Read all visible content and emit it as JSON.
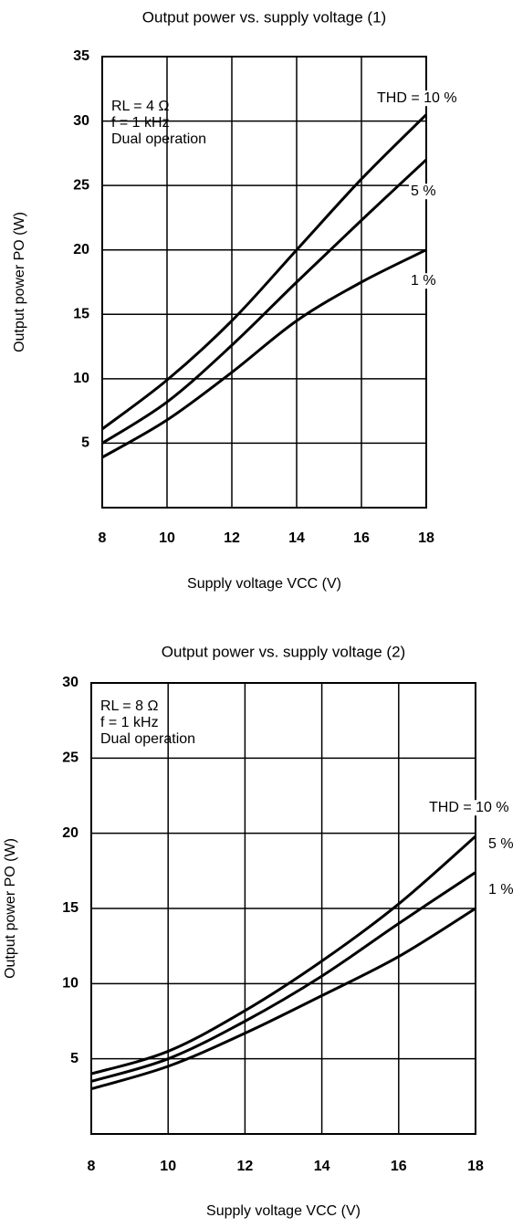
{
  "chart_data": [
    {
      "type": "line",
      "title": "Output power vs. supply voltage (1)",
      "x_label": "Supply voltage  VCC (V)",
      "y_label": "Output power  PO (W)",
      "annotations": [
        "RL = 4 Ω",
        "f = 1 kHz",
        "Dual operation"
      ],
      "x": [
        8,
        10,
        12,
        14,
        16,
        18
      ],
      "series": [
        {
          "name": "THD = 10 %",
          "color": "#000000",
          "values": [
            6.1,
            9.9,
            14.5,
            20,
            25.5,
            30.5
          ]
        },
        {
          "name": "5 %",
          "color": "#000000",
          "values": [
            5,
            8.2,
            12.6,
            17.5,
            22.3,
            27
          ]
        },
        {
          "name": "1 %",
          "color": "#000000",
          "values": [
            3.9,
            6.8,
            10.5,
            14.5,
            17.5,
            20
          ]
        }
      ],
      "xlim": [
        8,
        18
      ],
      "xticks": [
        8,
        10,
        12,
        14,
        16,
        18
      ],
      "ylim": [
        0,
        35
      ],
      "yticks": [
        5,
        10,
        15,
        20,
        25,
        30,
        35
      ],
      "grid": true
    },
    {
      "type": "line",
      "title": "Output power vs. supply voltage (2)",
      "x_label": "Supply voltage  VCC (V)",
      "y_label": "Output power  PO (W)",
      "annotations": [
        "RL = 8 Ω",
        "f = 1 kHz",
        "Dual operation"
      ],
      "x": [
        8,
        10,
        12,
        14,
        16,
        18
      ],
      "series": [
        {
          "name": "THD = 10 %",
          "color": "#000000",
          "values": [
            4,
            5.5,
            8.2,
            11.5,
            15.3,
            19.8
          ]
        },
        {
          "name": "5 %",
          "color": "#000000",
          "values": [
            3.5,
            5,
            7.5,
            10.5,
            14,
            17.4
          ]
        },
        {
          "name": "1 %",
          "color": "#000000",
          "values": [
            3,
            4.5,
            6.7,
            9.2,
            11.8,
            15
          ]
        }
      ],
      "xlim": [
        8,
        18
      ],
      "xticks": [
        8,
        10,
        12,
        14,
        16,
        18
      ],
      "ylim": [
        0,
        30
      ],
      "yticks": [
        5,
        10,
        15,
        20,
        25,
        30
      ],
      "grid": true
    }
  ]
}
